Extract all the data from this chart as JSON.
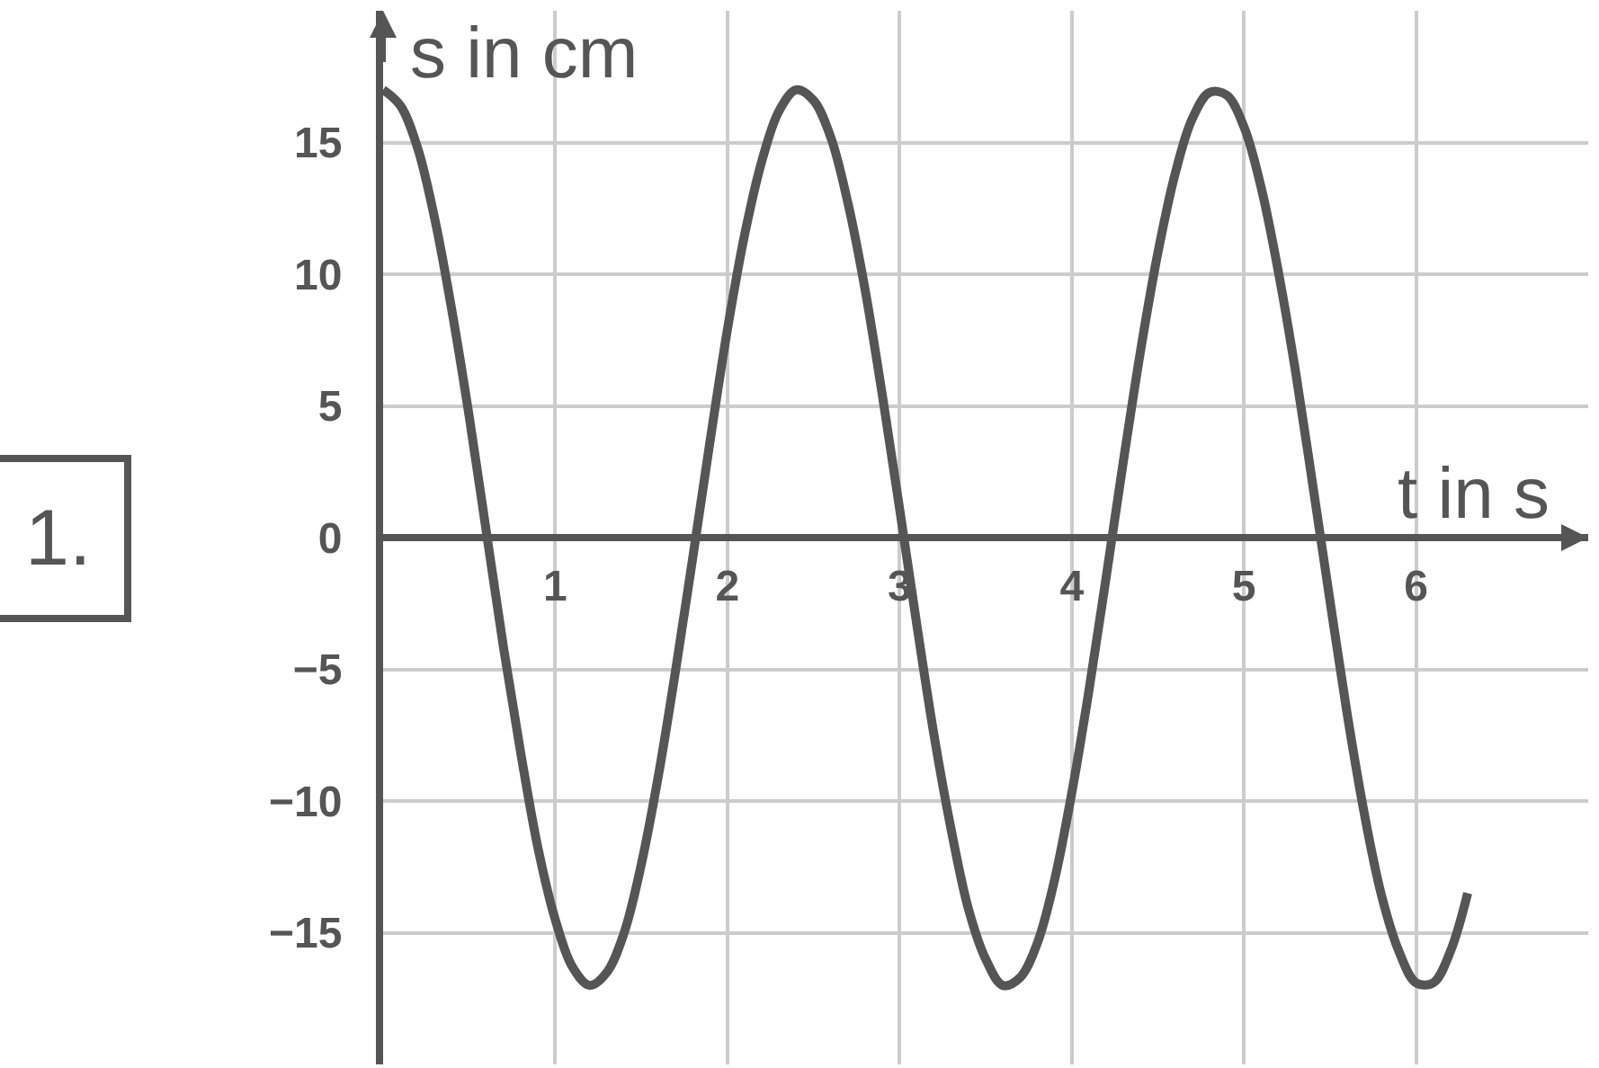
{
  "chart_data": {
    "type": "line",
    "xlabel": "t in s",
    "ylabel": "s in cm",
    "annotations": [
      "1."
    ],
    "xlim": [
      0,
      7
    ],
    "ylim": [
      -20,
      20
    ],
    "xticks": [
      1,
      2,
      3,
      4,
      5,
      6
    ],
    "yticks": [
      -15,
      -10,
      -5,
      0,
      5,
      10,
      15
    ],
    "grid": true,
    "marker": "none",
    "line_style": "solid",
    "series": [
      {
        "color": "#555555",
        "x": [
          0,
          0.1,
          0.2,
          0.3,
          0.4,
          0.5,
          0.6,
          0.7,
          0.8,
          0.9,
          1.0,
          1.1,
          1.2,
          1.3,
          1.4,
          1.5,
          1.6,
          1.7,
          1.8,
          1.9,
          2.0,
          2.1,
          2.2,
          2.3,
          2.4,
          2.5,
          2.6,
          2.7,
          2.8,
          2.9,
          3.0,
          3.1,
          3.2,
          3.3,
          3.4,
          3.5,
          3.6,
          3.7,
          3.8,
          3.9,
          4.0,
          4.1,
          4.2,
          4.3,
          4.4,
          4.5,
          4.6,
          4.7,
          4.8,
          4.9,
          5.0,
          5.1,
          5.2,
          5.3,
          5.4,
          5.5,
          5.6,
          5.7,
          5.8,
          5.9,
          6.0,
          6.1,
          6.2,
          6.3
        ],
        "values": [
          17,
          16.4,
          14.8,
          12.1,
          8.6,
          4.6,
          0.2,
          -4.2,
          -8.2,
          -11.8,
          -14.5,
          -16.3,
          -17,
          -16.5,
          -15,
          -12.4,
          -9,
          -5,
          -0.7,
          3.7,
          7.9,
          11.5,
          14.3,
          16.2,
          17,
          16.6,
          15.2,
          12.7,
          9.4,
          5.4,
          1.1,
          -3.3,
          -7.5,
          -11.1,
          -14.1,
          -16,
          -17,
          -16.7,
          -15.4,
          -13,
          -9.7,
          -5.8,
          -1.5,
          2.9,
          7.1,
          10.8,
          13.8,
          15.9,
          16.9,
          16.8,
          15.6,
          13.3,
          10.1,
          6.3,
          2,
          -2.4,
          -6.7,
          -10.5,
          -13.6,
          -15.7,
          -16.9,
          -16.9,
          -15.7,
          -13.5
        ]
      }
    ]
  }
}
